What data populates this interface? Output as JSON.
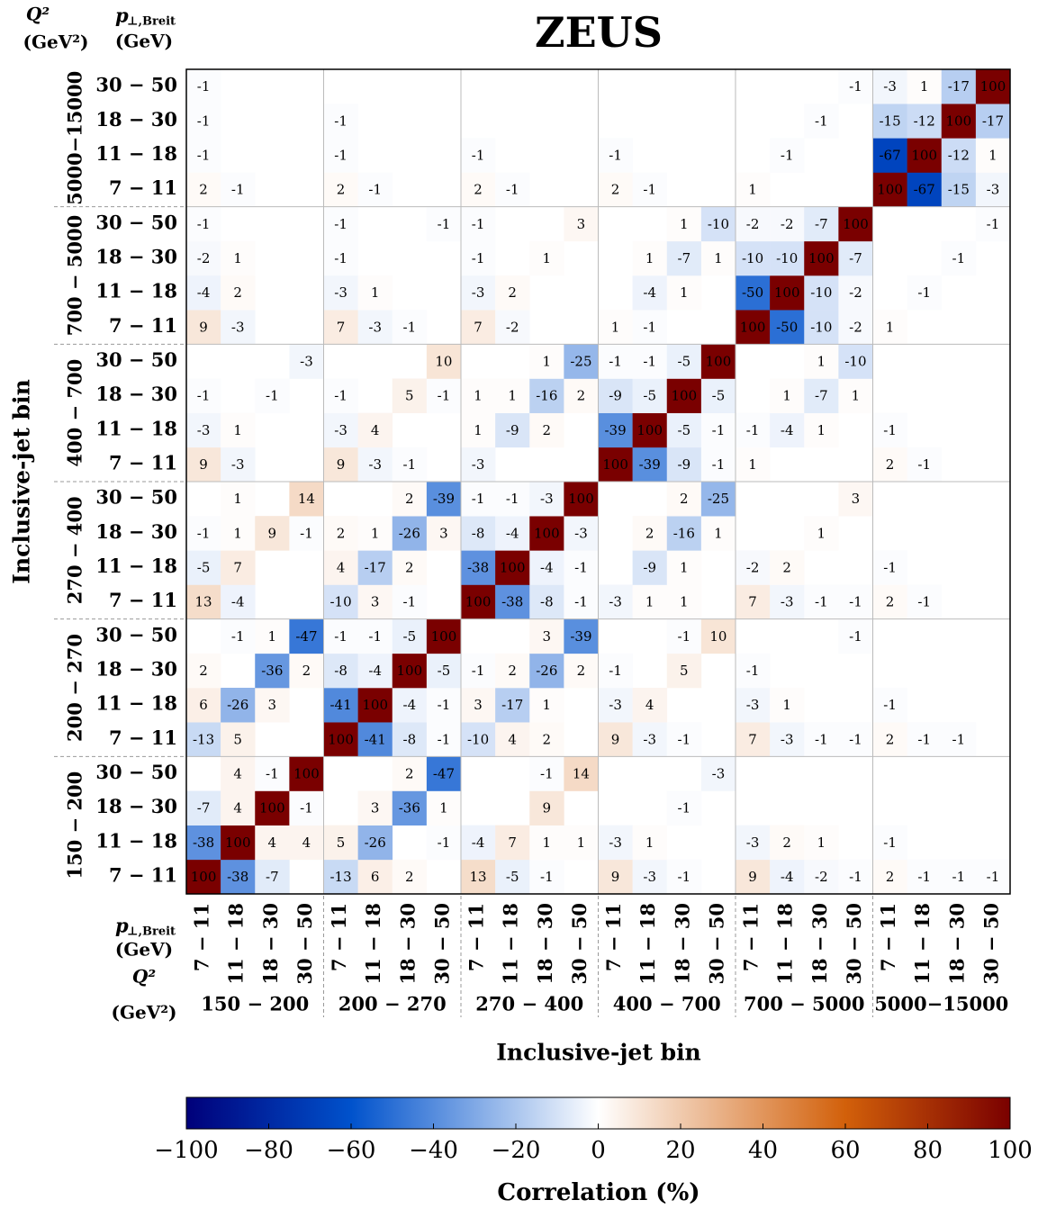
{
  "chart_data": {
    "type": "heatmap",
    "title": "ZEUS",
    "x_label": "Inclusive-jet bin",
    "y_label": "Inclusive-jet bin",
    "header": {
      "q2": "Q²",
      "q2_unit": "(GeV²)",
      "pt_symbol": "p",
      "pt_sub": "⊥,Breit",
      "pt_unit": "(GeV)"
    },
    "q2_bins": [
      "150 − 200",
      "200 − 270",
      "270 − 400",
      "400 − 700",
      "700 − 5000",
      "5000−15000"
    ],
    "pt_bins": [
      "7 − 11",
      "11 − 18",
      "18 − 30",
      "30 − 50"
    ],
    "values": [
      [
        100,
        -38,
        -7,
        null,
        -13,
        6,
        2,
        null,
        13,
        -5,
        -1,
        null,
        9,
        -3,
        -1,
        null,
        9,
        -4,
        -2,
        -1,
        2,
        -1,
        -1,
        -1
      ],
      [
        -38,
        100,
        4,
        4,
        5,
        -26,
        null,
        -1,
        -4,
        7,
        1,
        1,
        -3,
        1,
        null,
        null,
        -3,
        2,
        1,
        null,
        -1,
        null,
        null,
        null
      ],
      [
        -7,
        4,
        100,
        -1,
        null,
        3,
        -36,
        1,
        null,
        null,
        9,
        null,
        null,
        null,
        -1,
        null,
        null,
        null,
        null,
        null,
        null,
        null,
        null,
        null
      ],
      [
        null,
        4,
        -1,
        100,
        null,
        null,
        2,
        -47,
        null,
        null,
        -1,
        14,
        null,
        null,
        null,
        -3,
        null,
        null,
        null,
        null,
        null,
        null,
        null,
        null
      ],
      [
        -13,
        5,
        null,
        null,
        100,
        -41,
        -8,
        -1,
        -10,
        4,
        2,
        null,
        9,
        -3,
        -1,
        null,
        7,
        -3,
        -1,
        -1,
        2,
        -1,
        -1,
        null
      ],
      [
        6,
        -26,
        3,
        null,
        -41,
        100,
        -4,
        -1,
        3,
        -17,
        1,
        null,
        -3,
        4,
        null,
        null,
        -3,
        1,
        null,
        null,
        -1,
        null,
        null,
        null
      ],
      [
        2,
        null,
        -36,
        2,
        -8,
        -4,
        100,
        -5,
        -1,
        2,
        -26,
        2,
        -1,
        null,
        5,
        null,
        -1,
        null,
        null,
        null,
        null,
        null,
        null,
        null
      ],
      [
        null,
        -1,
        1,
        -47,
        -1,
        -1,
        -5,
        100,
        null,
        null,
        3,
        -39,
        null,
        null,
        -1,
        10,
        null,
        null,
        null,
        -1,
        null,
        null,
        null,
        null
      ],
      [
        13,
        -4,
        null,
        null,
        -10,
        3,
        -1,
        null,
        100,
        -38,
        -8,
        -1,
        -3,
        1,
        1,
        null,
        7,
        -3,
        -1,
        -1,
        2,
        -1,
        null,
        null
      ],
      [
        -5,
        7,
        null,
        null,
        4,
        -17,
        2,
        null,
        -38,
        100,
        -4,
        -1,
        null,
        -9,
        1,
        null,
        -2,
        2,
        null,
        null,
        -1,
        null,
        null,
        null
      ],
      [
        -1,
        1,
        9,
        -1,
        2,
        1,
        -26,
        3,
        -8,
        -4,
        100,
        -3,
        null,
        2,
        -16,
        1,
        null,
        null,
        1,
        null,
        null,
        null,
        null,
        null
      ],
      [
        null,
        1,
        null,
        14,
        null,
        null,
        2,
        -39,
        -1,
        -1,
        -3,
        100,
        null,
        null,
        2,
        -25,
        null,
        null,
        null,
        3,
        null,
        null,
        null,
        null
      ],
      [
        9,
        -3,
        null,
        null,
        9,
        -3,
        -1,
        null,
        -3,
        null,
        null,
        null,
        100,
        -39,
        -9,
        -1,
        1,
        null,
        null,
        null,
        2,
        -1,
        null,
        null
      ],
      [
        -3,
        1,
        null,
        null,
        -3,
        4,
        null,
        null,
        1,
        -9,
        2,
        null,
        -39,
        100,
        -5,
        -1,
        -1,
        -4,
        1,
        null,
        -1,
        null,
        null,
        null
      ],
      [
        -1,
        null,
        -1,
        null,
        -1,
        null,
        5,
        -1,
        1,
        1,
        -16,
        2,
        -9,
        -5,
        100,
        -5,
        null,
        1,
        -7,
        1,
        null,
        null,
        null,
        null
      ],
      [
        null,
        null,
        null,
        -3,
        null,
        null,
        null,
        10,
        null,
        null,
        1,
        -25,
        -1,
        -1,
        -5,
        100,
        null,
        null,
        1,
        -10,
        null,
        null,
        null,
        null
      ],
      [
        9,
        -3,
        null,
        null,
        7,
        -3,
        -1,
        null,
        7,
        -2,
        null,
        null,
        1,
        -1,
        null,
        null,
        100,
        -50,
        -10,
        -2,
        1,
        null,
        null,
        null
      ],
      [
        -4,
        2,
        null,
        null,
        -3,
        1,
        null,
        null,
        -3,
        2,
        null,
        null,
        null,
        -4,
        1,
        null,
        -50,
        100,
        -10,
        -2,
        null,
        -1,
        null,
        null
      ],
      [
        -2,
        1,
        null,
        null,
        -1,
        null,
        null,
        null,
        -1,
        null,
        1,
        null,
        null,
        1,
        -7,
        1,
        -10,
        -10,
        100,
        -7,
        null,
        null,
        -1,
        null
      ],
      [
        -1,
        null,
        null,
        null,
        -1,
        null,
        null,
        -1,
        -1,
        null,
        null,
        3,
        null,
        null,
        1,
        -10,
        -2,
        -2,
        -7,
        100,
        null,
        null,
        null,
        -1
      ],
      [
        2,
        -1,
        null,
        null,
        2,
        -1,
        null,
        null,
        2,
        -1,
        null,
        null,
        2,
        -1,
        null,
        null,
        1,
        null,
        null,
        null,
        100,
        -67,
        -15,
        -3
      ],
      [
        -1,
        null,
        null,
        null,
        -1,
        null,
        null,
        null,
        -1,
        null,
        null,
        null,
        -1,
        null,
        null,
        null,
        null,
        -1,
        null,
        null,
        -67,
        100,
        -12,
        1
      ],
      [
        -1,
        null,
        null,
        null,
        -1,
        null,
        null,
        null,
        null,
        null,
        null,
        null,
        null,
        null,
        null,
        null,
        null,
        null,
        -1,
        null,
        -15,
        -12,
        100,
        -17
      ],
      [
        -1,
        null,
        null,
        null,
        null,
        null,
        null,
        null,
        null,
        null,
        null,
        null,
        null,
        null,
        null,
        null,
        null,
        null,
        null,
        -1,
        -3,
        1,
        -17,
        100
      ]
    ],
    "colorscale": [
      [
        -100,
        "#00007a"
      ],
      [
        -60,
        "#0052cc"
      ],
      [
        0,
        "#ffffff"
      ],
      [
        60,
        "#d2600a"
      ],
      [
        100,
        "#7a0000"
      ]
    ],
    "colorbar": {
      "label": "Correlation (%)",
      "lim": [
        -100,
        100
      ],
      "ticks": [
        {
          "value": -100,
          "label": "−100"
        },
        {
          "value": -80,
          "label": "−80"
        },
        {
          "value": -60,
          "label": "−60"
        },
        {
          "value": -40,
          "label": "−40"
        },
        {
          "value": -20,
          "label": "−20"
        },
        0,
        20,
        40,
        60,
        80,
        100
      ]
    }
  }
}
